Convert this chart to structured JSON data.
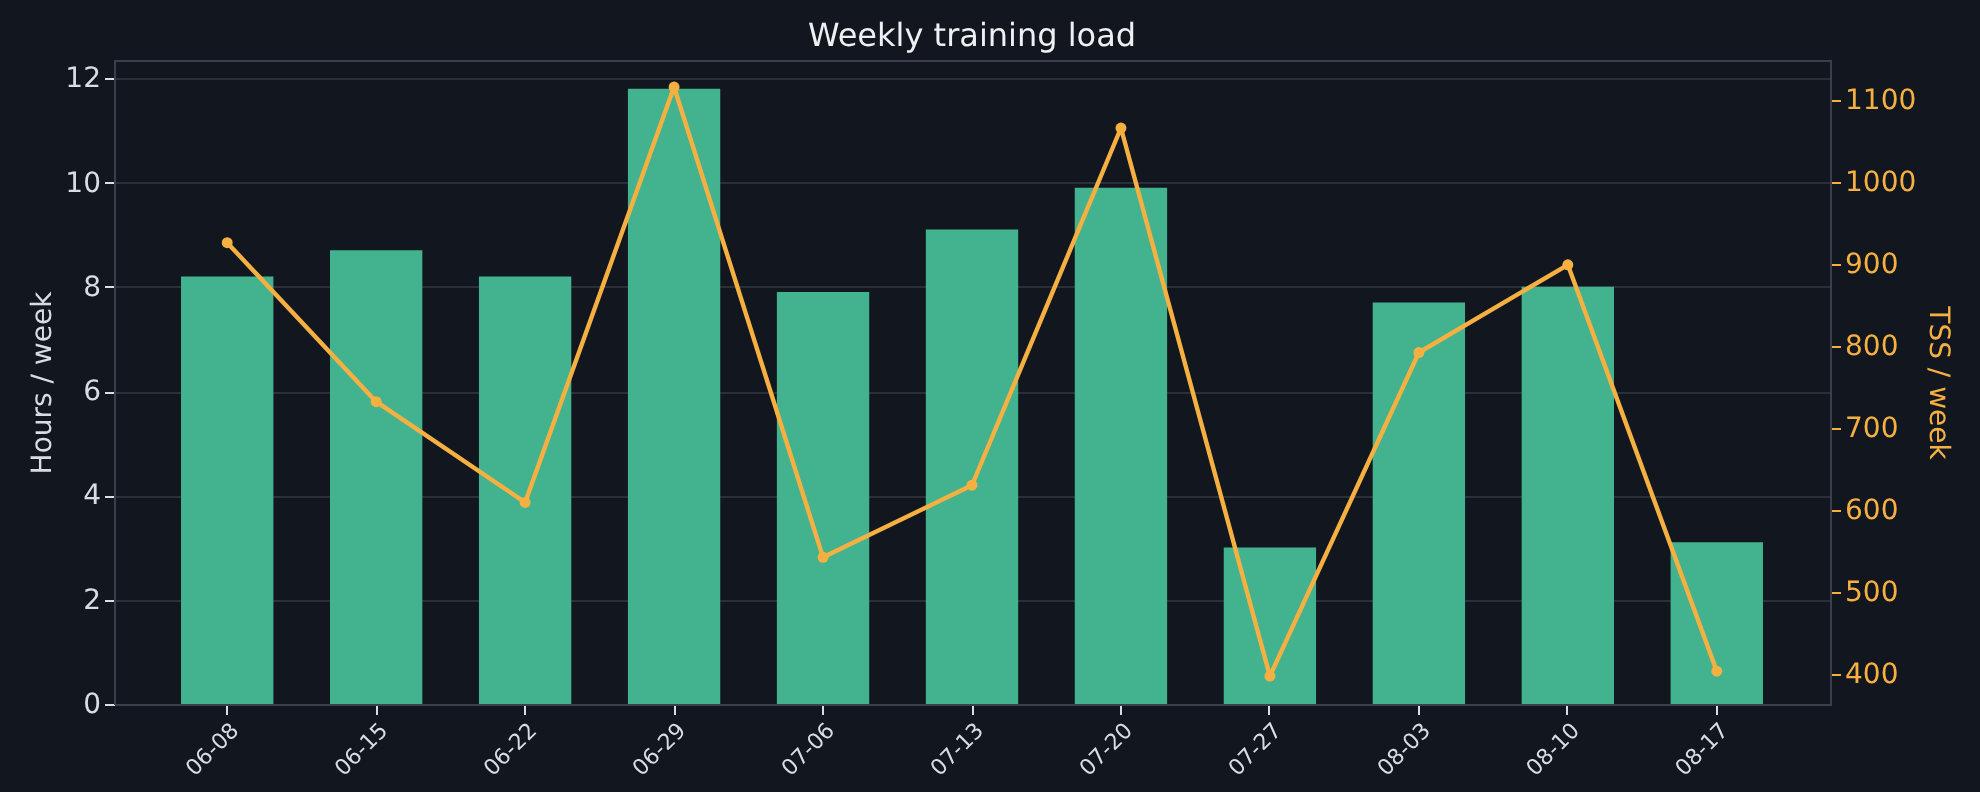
{
  "chart_data": {
    "type": "bar",
    "title": "Weekly training load",
    "ylabel": "Hours / week",
    "y2label": "TSS / week",
    "categories": [
      "06-08",
      "06-15",
      "06-22",
      "06-29",
      "07-06",
      "07-13",
      "07-20",
      "07-27",
      "08-03",
      "08-10",
      "08-17"
    ],
    "series": [
      {
        "color": "#43b38f",
        "values": [
          8.2,
          8.7,
          8.2,
          11.8,
          7.9,
          9.1,
          9.9,
          3.0,
          7.7,
          8.0,
          3.1
        ]
      },
      {
        "type": "line",
        "axis": "y2",
        "color": "#f5b041",
        "marker": "circle",
        "values": [
          926,
          732,
          609,
          1116,
          542,
          630,
          1066,
          397,
          792,
          899,
          403
        ]
      }
    ],
    "ylim": [
      0,
      12.35
    ],
    "yticks": [
      0,
      2,
      4,
      6,
      8,
      10,
      12
    ],
    "y2lim": [
      363,
      1149
    ],
    "y2ticks": [
      400,
      500,
      600,
      700,
      800,
      900,
      1000,
      1100
    ],
    "grid": "y"
  }
}
